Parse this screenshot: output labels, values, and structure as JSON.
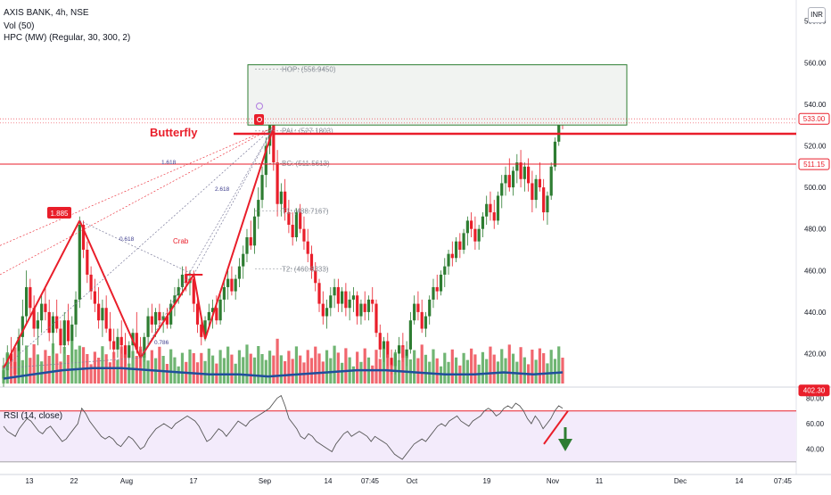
{
  "header": {
    "title": "AXIS BANK, 4h, NSE",
    "volume_label": "Vol (50)",
    "indicator_label": "HPC (MW) (Regular, 30, 300, 2)",
    "rsi_label": "RSI (14, close)",
    "currency_badge": "INR"
  },
  "colors": {
    "up": "#26a69a",
    "up_body": "#2e7d32",
    "down": "#e91e2a",
    "pattern": "#e91e2a",
    "zone_border": "#2e7d32",
    "zone_fill": "#f1f3f1",
    "volume_ma": "#1f4e9c",
    "rsi_line": "#555555",
    "rsi_band": "#f3ebfb"
  },
  "chart_data": [
    {
      "type": "candlestick",
      "title": "AXIS BANK, 4h, NSE",
      "y_ticks": [
        "580.00",
        "560.00",
        "540.00",
        "520.00",
        "500.00",
        "480.00",
        "460.00",
        "440.00",
        "420.00"
      ],
      "ylim": [
        402,
        582
      ],
      "x_ticks": [
        "13",
        "22",
        "Aug",
        "17",
        "Sep",
        "14",
        "07:45",
        "Oct",
        "19",
        "Nov",
        "11",
        "Dec",
        "14",
        "07:45"
      ],
      "price_badges": [
        {
          "label": "533.00",
          "value": 533,
          "style": "red-outline"
        },
        {
          "label": "511.15",
          "value": 511.15,
          "style": "red-outline"
        },
        {
          "label": "402.30",
          "value": 402.3,
          "style": "red-fill"
        }
      ],
      "levels": [
        {
          "label": "HOP: (556.9450)",
          "value": 556.9
        },
        {
          "label": "PAL: (527.1803)",
          "value": 527.2
        },
        {
          "label": "BC: (511.5613)",
          "value": 511.56
        },
        {
          "label": "T1: (488.7167)",
          "value": 488.7
        },
        {
          "label": "T2: (460.8333)",
          "value": 460.8
        }
      ],
      "horizontal_lines": [
        525.8,
        511.2
      ],
      "potential_reversal_zone": {
        "low": 530,
        "high": 559
      },
      "patterns": [
        {
          "name": "Butterfly",
          "points": [
            {
              "bar": 0,
              "price": 413
            },
            {
              "bar": 20,
              "price": 484
            },
            {
              "bar": 36,
              "price": 418
            },
            {
              "bar": 50,
              "price": 458
            },
            {
              "bar": 53,
              "price": 427
            },
            {
              "bar": 71,
              "price": 529
            }
          ]
        },
        {
          "name": "Crab"
        }
      ],
      "ratio_labels": [
        "1.885",
        "1.618",
        "0.618",
        "2.618",
        "0.786"
      ],
      "candles": [
        [
          408,
          418,
          404,
          412
        ],
        [
          412,
          424,
          409,
          420
        ],
        [
          420,
          428,
          414,
          416
        ],
        [
          416,
          422,
          406,
          410
        ],
        [
          410,
          432,
          408,
          428
        ],
        [
          428,
          446,
          424,
          438
        ],
        [
          438,
          460,
          434,
          452
        ],
        [
          452,
          456,
          438,
          442
        ],
        [
          442,
          448,
          428,
          432
        ],
        [
          432,
          440,
          424,
          436
        ],
        [
          436,
          448,
          430,
          444
        ],
        [
          444,
          452,
          436,
          440
        ],
        [
          440,
          446,
          426,
          430
        ],
        [
          430,
          440,
          420,
          438
        ],
        [
          438,
          446,
          430,
          432
        ],
        [
          432,
          436,
          420,
          424
        ],
        [
          424,
          440,
          420,
          436
        ],
        [
          436,
          444,
          424,
          426
        ],
        [
          426,
          438,
          416,
          434
        ],
        [
          434,
          450,
          428,
          446
        ],
        [
          446,
          486,
          442,
          482
        ],
        [
          482,
          484,
          466,
          470
        ],
        [
          470,
          474,
          454,
          458
        ],
        [
          458,
          462,
          446,
          450
        ],
        [
          450,
          456,
          440,
          444
        ],
        [
          444,
          452,
          432,
          436
        ],
        [
          436,
          446,
          428,
          442
        ],
        [
          442,
          448,
          430,
          432
        ],
        [
          432,
          440,
          422,
          426
        ],
        [
          426,
          432,
          418,
          422
        ],
        [
          422,
          432,
          418,
          428
        ],
        [
          428,
          436,
          420,
          424
        ],
        [
          424,
          430,
          414,
          418
        ],
        [
          418,
          426,
          412,
          424
        ],
        [
          424,
          432,
          418,
          430
        ],
        [
          430,
          440,
          420,
          422
        ],
        [
          422,
          428,
          414,
          418
        ],
        [
          418,
          430,
          416,
          428
        ],
        [
          428,
          442,
          424,
          438
        ],
        [
          438,
          444,
          430,
          434
        ],
        [
          434,
          442,
          428,
          440
        ],
        [
          440,
          444,
          432,
          436
        ],
        [
          436,
          440,
          430,
          438
        ],
        [
          438,
          442,
          432,
          434
        ],
        [
          434,
          446,
          432,
          444
        ],
        [
          444,
          452,
          438,
          448
        ],
        [
          448,
          456,
          444,
          452
        ],
        [
          452,
          462,
          448,
          458
        ],
        [
          458,
          462,
          450,
          454
        ],
        [
          454,
          460,
          448,
          456
        ],
        [
          456,
          460,
          440,
          444
        ],
        [
          444,
          448,
          430,
          434
        ],
        [
          434,
          436,
          424,
          428
        ],
        [
          428,
          438,
          426,
          436
        ],
        [
          436,
          444,
          432,
          440
        ],
        [
          440,
          446,
          432,
          442
        ],
        [
          442,
          448,
          434,
          436
        ],
        [
          436,
          450,
          434,
          446
        ],
        [
          446,
          456,
          440,
          452
        ],
        [
          452,
          460,
          446,
          456
        ],
        [
          456,
          462,
          448,
          450
        ],
        [
          450,
          458,
          446,
          456
        ],
        [
          456,
          466,
          452,
          462
        ],
        [
          462,
          472,
          456,
          468
        ],
        [
          468,
          480,
          464,
          476
        ],
        [
          476,
          484,
          470,
          472
        ],
        [
          472,
          490,
          468,
          486
        ],
        [
          486,
          500,
          480,
          494
        ],
        [
          494,
          510,
          490,
          506
        ],
        [
          506,
          524,
          500,
          520
        ],
        [
          520,
          534,
          516,
          530
        ],
        [
          530,
          532,
          508,
          512
        ],
        [
          512,
          518,
          486,
          492
        ],
        [
          492,
          502,
          486,
          498
        ],
        [
          498,
          504,
          484,
          488
        ],
        [
          488,
          494,
          478,
          482
        ],
        [
          482,
          488,
          472,
          476
        ],
        [
          476,
          490,
          474,
          488
        ],
        [
          488,
          492,
          478,
          480
        ],
        [
          480,
          486,
          470,
          474
        ],
        [
          474,
          480,
          464,
          468
        ],
        [
          468,
          472,
          456,
          460
        ],
        [
          460,
          464,
          450,
          454
        ],
        [
          454,
          456,
          440,
          444
        ],
        [
          444,
          450,
          434,
          438
        ],
        [
          438,
          446,
          432,
          442
        ],
        [
          442,
          452,
          438,
          448
        ],
        [
          448,
          456,
          442,
          452
        ],
        [
          452,
          456,
          440,
          444
        ],
        [
          444,
          452,
          440,
          450
        ],
        [
          450,
          454,
          438,
          442
        ],
        [
          442,
          450,
          436,
          446
        ],
        [
          446,
          452,
          440,
          448
        ],
        [
          448,
          450,
          434,
          438
        ],
        [
          438,
          446,
          434,
          444
        ],
        [
          444,
          450,
          436,
          440
        ],
        [
          440,
          448,
          436,
          446
        ],
        [
          446,
          452,
          440,
          444
        ],
        [
          444,
          446,
          428,
          430
        ],
        [
          430,
          434,
          418,
          422
        ],
        [
          422,
          428,
          416,
          426
        ],
        [
          426,
          430,
          414,
          418
        ],
        [
          418,
          422,
          410,
          414
        ],
        [
          414,
          422,
          410,
          420
        ],
        [
          420,
          428,
          416,
          424
        ],
        [
          424,
          430,
          416,
          418
        ],
        [
          418,
          426,
          414,
          422
        ],
        [
          422,
          440,
          420,
          436
        ],
        [
          436,
          448,
          434,
          444
        ],
        [
          444,
          450,
          436,
          440
        ],
        [
          440,
          446,
          430,
          432
        ],
        [
          432,
          440,
          428,
          438
        ],
        [
          438,
          448,
          434,
          446
        ],
        [
          446,
          456,
          442,
          452
        ],
        [
          452,
          458,
          446,
          450
        ],
        [
          450,
          460,
          448,
          458
        ],
        [
          458,
          466,
          452,
          462
        ],
        [
          462,
          470,
          458,
          468
        ],
        [
          468,
          474,
          462,
          466
        ],
        [
          466,
          476,
          464,
          474
        ],
        [
          474,
          478,
          466,
          470
        ],
        [
          470,
          480,
          468,
          478
        ],
        [
          478,
          486,
          472,
          484
        ],
        [
          484,
          488,
          476,
          480
        ],
        [
          480,
          486,
          470,
          474
        ],
        [
          474,
          482,
          470,
          480
        ],
        [
          480,
          488,
          476,
          486
        ],
        [
          486,
          496,
          482,
          492
        ],
        [
          492,
          498,
          484,
          488
        ],
        [
          488,
          494,
          480,
          484
        ],
        [
          484,
          498,
          482,
          496
        ],
        [
          496,
          506,
          490,
          502
        ],
        [
          502,
          510,
          496,
          506
        ],
        [
          506,
          514,
          498,
          500
        ],
        [
          500,
          510,
          496,
          508
        ],
        [
          508,
          516,
          502,
          512
        ],
        [
          512,
          518,
          500,
          504
        ],
        [
          504,
          512,
          498,
          510
        ],
        [
          510,
          514,
          498,
          502
        ],
        [
          502,
          508,
          488,
          494
        ],
        [
          494,
          506,
          490,
          504
        ],
        [
          504,
          512,
          498,
          500
        ],
        [
          500,
          504,
          484,
          488
        ],
        [
          488,
          498,
          482,
          496
        ],
        [
          496,
          512,
          494,
          510
        ],
        [
          510,
          524,
          508,
          522
        ],
        [
          522,
          536,
          520,
          534
        ],
        [
          534,
          538,
          528,
          533
        ]
      ],
      "volume_ma": [
        408,
        410,
        412,
        413,
        413,
        412,
        411,
        410,
        410,
        409,
        410,
        411,
        412,
        412,
        411,
        410,
        410,
        411,
        410,
        411
      ],
      "series": [
        {
          "name": "Vol (50)"
        }
      ]
    },
    {
      "type": "line",
      "title": "RSI (14, close)",
      "y_ticks": [
        "80.00",
        "60.00",
        "40.00"
      ],
      "ylim": [
        28,
        86
      ],
      "bands": [
        70,
        30
      ],
      "values": [
        58,
        54,
        52,
        50,
        56,
        60,
        64,
        62,
        58,
        54,
        52,
        56,
        58,
        54,
        50,
        46,
        48,
        52,
        56,
        60,
        72,
        68,
        62,
        58,
        54,
        50,
        48,
        50,
        48,
        44,
        42,
        46,
        50,
        48,
        44,
        40,
        42,
        48,
        52,
        56,
        58,
        60,
        58,
        56,
        60,
        62,
        64,
        66,
        64,
        62,
        58,
        52,
        46,
        48,
        52,
        56,
        54,
        50,
        54,
        58,
        62,
        60,
        58,
        62,
        64,
        66,
        68,
        70,
        72,
        76,
        80,
        82,
        74,
        64,
        60,
        56,
        50,
        48,
        52,
        50,
        46,
        44,
        42,
        40,
        38,
        44,
        48,
        52,
        54,
        50,
        52,
        54,
        52,
        50,
        46,
        50,
        48,
        46,
        44,
        40,
        36,
        34,
        32,
        36,
        40,
        44,
        46,
        48,
        46,
        50,
        54,
        58,
        60,
        58,
        62,
        64,
        66,
        62,
        60,
        58,
        62,
        64,
        66,
        70,
        72,
        70,
        66,
        68,
        72,
        74,
        72,
        76,
        74,
        70,
        64,
        60,
        66,
        62,
        56,
        60,
        64,
        70,
        74,
        72
      ]
    }
  ]
}
